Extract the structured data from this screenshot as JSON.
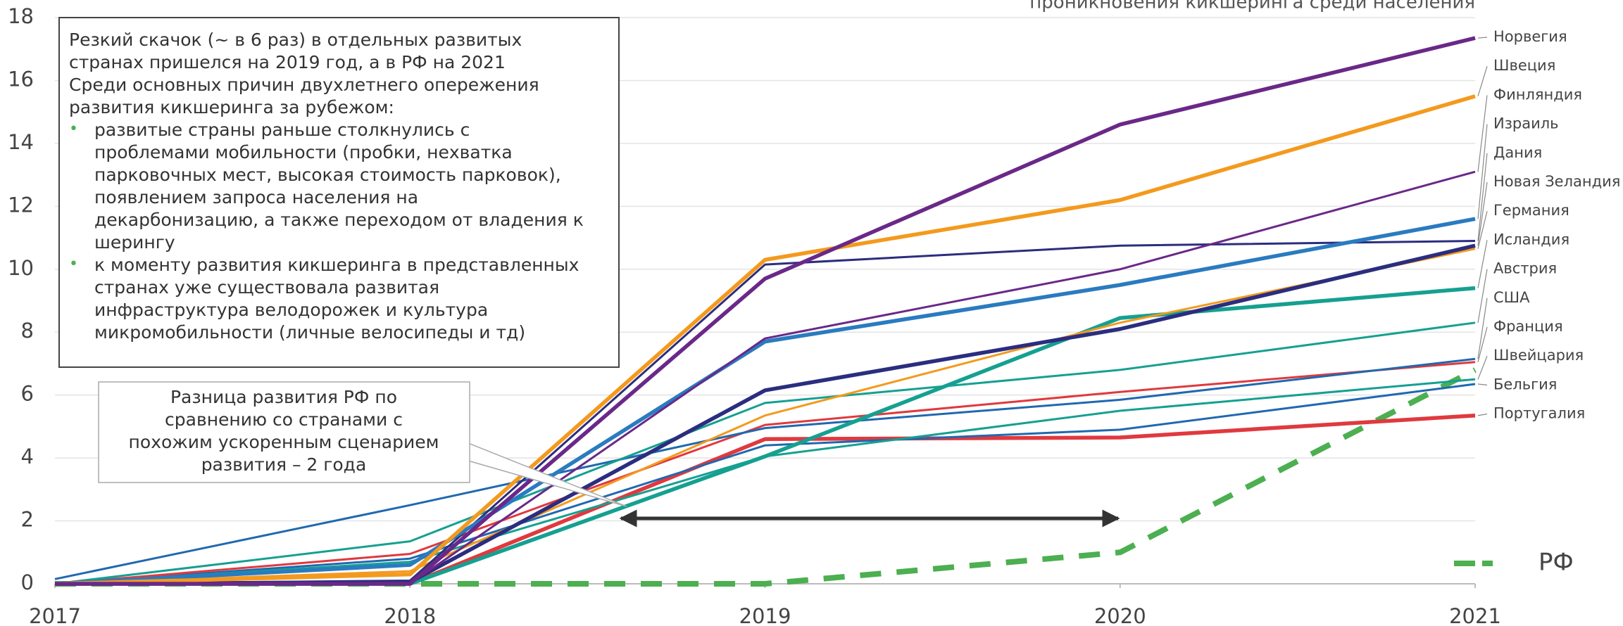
{
  "chart_data": {
    "type": "line",
    "title": "проникновения кикшеринга среди населения",
    "x": [
      2017,
      2018,
      2019,
      2020,
      2021
    ],
    "xlim": [
      2017,
      2021
    ],
    "xticks": [
      2017,
      2018,
      2019,
      2020,
      2021
    ],
    "ylim": [
      0,
      18
    ],
    "yticks": [
      0,
      2,
      4,
      6,
      8,
      10,
      12,
      14,
      16,
      18
    ],
    "grid": true,
    "series": [
      {
        "name": "Норвегия",
        "color": "#6a2888",
        "weight": "bold",
        "values": [
          0,
          0,
          9.7,
          14.6,
          17.35
        ]
      },
      {
        "name": "Швеция",
        "color": "#f39a1e",
        "weight": "bold",
        "values": [
          0,
          0.3,
          10.3,
          12.2,
          15.5
        ]
      },
      {
        "name": "Финляндия",
        "color": "#6a2888",
        "weight": "normal",
        "values": [
          0,
          0,
          7.8,
          10.0,
          13.1
        ]
      },
      {
        "name": "Израиль",
        "color": "#2a7bc0",
        "weight": "bold",
        "values": [
          0,
          0.6,
          7.7,
          9.5,
          11.6
        ]
      },
      {
        "name": "Дания",
        "color": "#2b2d7f",
        "weight": "normal",
        "values": [
          0,
          0.1,
          10.15,
          10.75,
          10.9
        ]
      },
      {
        "name": "Новая Зеландия",
        "color": "#2b2d7f",
        "weight": "bold",
        "values": [
          0,
          0.05,
          6.15,
          8.1,
          10.75
        ]
      },
      {
        "name": "Германия",
        "color": "#f39a1e",
        "weight": "normal",
        "values": [
          0,
          0.4,
          5.35,
          8.3,
          10.65
        ]
      },
      {
        "name": "Исландия",
        "color": "#15a091",
        "weight": "bold",
        "values": [
          0,
          0,
          4.05,
          8.45,
          9.4
        ]
      },
      {
        "name": "Австрия",
        "color": "#15a091",
        "weight": "normal",
        "values": [
          0,
          1.35,
          5.75,
          6.8,
          8.3
        ]
      },
      {
        "name": "США",
        "color": "#2068b0",
        "weight": "normal",
        "values": [
          0.15,
          2.5,
          4.95,
          5.85,
          7.15
        ]
      },
      {
        "name": "Франция",
        "color": "#e0393e",
        "weight": "normal",
        "values": [
          0,
          0.95,
          5.05,
          6.1,
          7.05
        ]
      },
      {
        "name": "Швейцария",
        "color": "#15a091",
        "weight": "normal",
        "values": [
          0,
          0.7,
          4.05,
          5.5,
          6.5
        ]
      },
      {
        "name": "Бельгия",
        "color": "#2068b0",
        "weight": "normal",
        "values": [
          0,
          0.8,
          4.4,
          4.9,
          6.35
        ]
      },
      {
        "name": "Португалия",
        "color": "#e0393e",
        "weight": "bold",
        "values": [
          0,
          0,
          4.6,
          4.65,
          5.35
        ]
      },
      {
        "name": "РФ",
        "color": "#4caf50",
        "weight": "bold",
        "linestyle": "dashed",
        "values": [
          0,
          0,
          0,
          1.0,
          6.8
        ]
      }
    ],
    "annotation": {
      "intro": [
        "Резкий скачок (~ в 6 раз) в отдельных развитых",
        "странах пришелся на 2019 год, а в РФ на 2021",
        "Среди основных причин двухлетнего опережения",
        "развития кикшеринга за рубежом:"
      ],
      "bullets": [
        [
          "развитые страны раньше столкнулись с",
          "проблемами мобильности (пробки, нехватка",
          "парковочных мест, высокая стоимость парковок),",
          "появлением запроса населения на",
          "декарбонизацию, а также переходом от владения к",
          "шерингу"
        ],
        [
          "к моменту развития кикшеринга в представленных",
          "странах уже существовала развитая",
          "инфраструктура велодорожек и культура",
          "микромобильности (личные велосипеды и тд)"
        ]
      ]
    },
    "callout": [
      "Разница развития РФ по",
      "сравнению со странами с",
      "похожим ускоренным сценарием",
      "развития – 2 года"
    ]
  }
}
